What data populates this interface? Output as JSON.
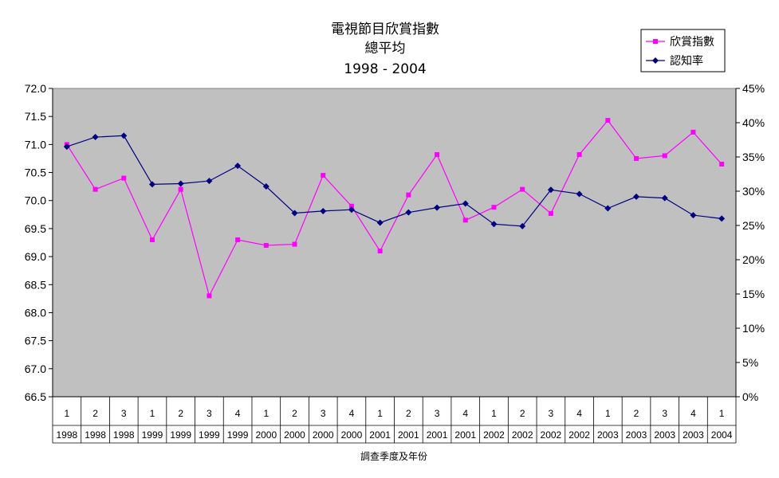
{
  "chart_data": {
    "type": "line",
    "title": [
      "電視節目欣賞指數",
      "總平均",
      "1998 - 2004"
    ],
    "xlabel": "調查季度及年份",
    "categories_quarter": [
      "1",
      "2",
      "3",
      "1",
      "2",
      "3",
      "4",
      "1",
      "2",
      "3",
      "4",
      "1",
      "2",
      "3",
      "4",
      "1",
      "2",
      "3",
      "4",
      "1",
      "2",
      "3",
      "4",
      "1"
    ],
    "categories_year": [
      "1998",
      "1998",
      "1998",
      "1999",
      "1999",
      "1999",
      "1999",
      "2000",
      "2000",
      "2000",
      "2000",
      "2001",
      "2001",
      "2001",
      "2001",
      "2002",
      "2002",
      "2002",
      "2002",
      "2003",
      "2003",
      "2003",
      "2003",
      "2004"
    ],
    "y_left": {
      "min": 66.5,
      "max": 72.0,
      "step": 0.5,
      "tick_labels": [
        "66.5",
        "67.0",
        "67.5",
        "68.0",
        "68.5",
        "69.0",
        "69.5",
        "70.0",
        "70.5",
        "71.0",
        "71.5",
        "72.0"
      ]
    },
    "y_right": {
      "min": 0,
      "max": 45,
      "step": 5,
      "tick_labels": [
        "0%",
        "5%",
        "10%",
        "15%",
        "20%",
        "25%",
        "30%",
        "35%",
        "40%",
        "45%"
      ]
    },
    "grid": false,
    "plot_background": "#c0c0c0",
    "legend_position": "top-right",
    "series": [
      {
        "name": "欣賞指數",
        "axis": "left",
        "color": "#ff00ff",
        "marker": "square",
        "values": [
          71.0,
          70.2,
          70.4,
          69.3,
          70.2,
          68.3,
          69.3,
          69.2,
          69.22,
          70.45,
          69.9,
          69.1,
          70.1,
          70.82,
          69.65,
          69.88,
          70.2,
          69.77,
          70.82,
          71.43,
          70.75,
          70.8,
          71.22,
          70.65
        ]
      },
      {
        "name": "認知率",
        "axis": "right",
        "color": "#000080",
        "marker": "diamond",
        "values": [
          36.5,
          37.9,
          38.1,
          31.0,
          31.1,
          31.5,
          33.7,
          30.7,
          26.8,
          27.1,
          27.3,
          25.4,
          26.9,
          27.6,
          28.2,
          25.2,
          24.9,
          30.2,
          29.6,
          27.5,
          29.2,
          29.0,
          26.5,
          26.0
        ]
      }
    ]
  }
}
